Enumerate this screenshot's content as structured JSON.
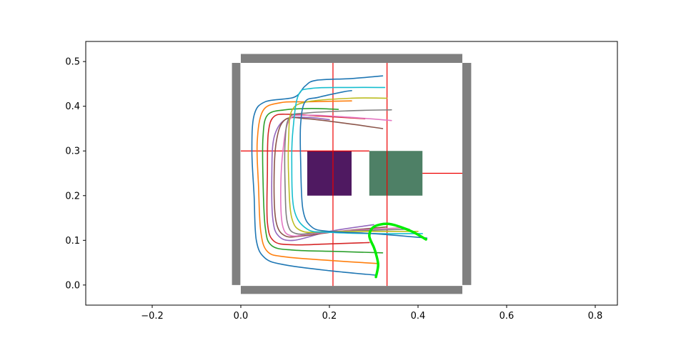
{
  "chart_data": {
    "type": "line",
    "xlim": [
      -0.35,
      0.85
    ],
    "ylim": [
      -0.045,
      0.545
    ],
    "x_ticks": [
      -0.2,
      0.0,
      0.2,
      0.4,
      0.6,
      0.8
    ],
    "x_tick_labels": [
      "−0.2",
      "0.0",
      "0.2",
      "0.4",
      "0.6",
      "0.8"
    ],
    "y_ticks": [
      0.0,
      0.1,
      0.2,
      0.3,
      0.4,
      0.5
    ],
    "y_tick_labels": [
      "0.0",
      "0.1",
      "0.2",
      "0.3",
      "0.4",
      "0.5"
    ],
    "grid": false,
    "walls": {
      "color": "#808080",
      "rects": [
        {
          "x0": 0.0,
          "x1": 0.5,
          "y0": 0.497,
          "y1": 0.517
        },
        {
          "x0": 0.0,
          "x1": 0.5,
          "y0": -0.02,
          "y1": -0.002
        },
        {
          "x0": -0.02,
          "x1": -0.001,
          "y0": 0.0,
          "y1": 0.497
        },
        {
          "x0": 0.5,
          "x1": 0.52,
          "y0": 0.0,
          "y1": 0.497
        }
      ]
    },
    "obstacles": [
      {
        "color": "#4f1961",
        "x0": 0.15,
        "x1": 0.25,
        "y0": 0.2,
        "y1": 0.3
      },
      {
        "color": "#4e8066",
        "x0": 0.29,
        "x1": 0.41,
        "y0": 0.2,
        "y1": 0.3
      }
    ],
    "red_lines": {
      "color": "#ee0000",
      "segments": [
        [
          [
            0.208,
            -0.002
          ],
          [
            0.208,
            0.497
          ]
        ],
        [
          [
            0.33,
            -0.002
          ],
          [
            0.33,
            0.497
          ]
        ],
        [
          [
            0.0,
            0.3
          ],
          [
            0.29,
            0.3
          ]
        ],
        [
          [
            0.41,
            0.25
          ],
          [
            0.5,
            0.25
          ]
        ]
      ]
    },
    "series": [
      {
        "color": "#1f77b4",
        "points": [
          [
            0.305,
            0.022
          ],
          [
            0.2,
            0.032
          ],
          [
            0.1,
            0.045
          ],
          [
            0.055,
            0.06
          ],
          [
            0.035,
            0.1
          ],
          [
            0.03,
            0.2
          ],
          [
            0.025,
            0.3
          ],
          [
            0.03,
            0.38
          ],
          [
            0.055,
            0.41
          ],
          [
            0.12,
            0.42
          ],
          [
            0.145,
            0.445
          ],
          [
            0.17,
            0.458
          ],
          [
            0.25,
            0.462
          ],
          [
            0.32,
            0.468
          ]
        ]
      },
      {
        "color": "#ff7f0e",
        "points": [
          [
            0.31,
            0.048
          ],
          [
            0.2,
            0.055
          ],
          [
            0.1,
            0.063
          ],
          [
            0.06,
            0.075
          ],
          [
            0.045,
            0.12
          ],
          [
            0.04,
            0.22
          ],
          [
            0.037,
            0.32
          ],
          [
            0.05,
            0.39
          ],
          [
            0.09,
            0.408
          ],
          [
            0.15,
            0.41
          ],
          [
            0.25,
            0.412
          ]
        ]
      },
      {
        "color": "#2ca02c",
        "points": [
          [
            0.32,
            0.072
          ],
          [
            0.22,
            0.075
          ],
          [
            0.12,
            0.078
          ],
          [
            0.07,
            0.088
          ],
          [
            0.055,
            0.13
          ],
          [
            0.05,
            0.24
          ],
          [
            0.05,
            0.33
          ],
          [
            0.06,
            0.38
          ],
          [
            0.1,
            0.392
          ],
          [
            0.16,
            0.395
          ],
          [
            0.22,
            0.393
          ]
        ]
      },
      {
        "color": "#d62728",
        "points": [
          [
            0.29,
            0.095
          ],
          [
            0.2,
            0.092
          ],
          [
            0.12,
            0.09
          ],
          [
            0.075,
            0.098
          ],
          [
            0.06,
            0.14
          ],
          [
            0.06,
            0.25
          ],
          [
            0.062,
            0.34
          ],
          [
            0.075,
            0.377
          ],
          [
            0.11,
            0.382
          ],
          [
            0.18,
            0.378
          ],
          [
            0.28,
            0.372
          ]
        ]
      },
      {
        "color": "#9467bd",
        "points": [
          [
            0.3,
            0.135
          ],
          [
            0.2,
            0.12
          ],
          [
            0.12,
            0.1
          ],
          [
            0.085,
            0.11
          ],
          [
            0.072,
            0.15
          ],
          [
            0.07,
            0.25
          ],
          [
            0.075,
            0.33
          ],
          [
            0.1,
            0.37
          ],
          [
            0.15,
            0.375
          ],
          [
            0.2,
            0.37
          ]
        ]
      },
      {
        "color": "#8c564b",
        "points": [
          [
            0.33,
            0.13
          ],
          [
            0.22,
            0.12
          ],
          [
            0.14,
            0.11
          ],
          [
            0.1,
            0.11
          ],
          [
            0.08,
            0.14
          ],
          [
            0.075,
            0.22
          ],
          [
            0.08,
            0.32
          ],
          [
            0.1,
            0.37
          ],
          [
            0.15,
            0.372
          ],
          [
            0.25,
            0.36
          ],
          [
            0.32,
            0.35
          ]
        ]
      },
      {
        "color": "#e377c2",
        "points": [
          [
            0.36,
            0.128
          ],
          [
            0.25,
            0.122
          ],
          [
            0.16,
            0.115
          ],
          [
            0.115,
            0.11
          ],
          [
            0.095,
            0.13
          ],
          [
            0.09,
            0.2
          ],
          [
            0.095,
            0.3
          ],
          [
            0.11,
            0.37
          ],
          [
            0.15,
            0.38
          ],
          [
            0.25,
            0.375
          ],
          [
            0.34,
            0.368
          ]
        ]
      },
      {
        "color": "#7f7f7f",
        "points": [
          [
            0.38,
            0.125
          ],
          [
            0.28,
            0.122
          ],
          [
            0.18,
            0.118
          ],
          [
            0.125,
            0.115
          ],
          [
            0.105,
            0.14
          ],
          [
            0.1,
            0.22
          ],
          [
            0.1,
            0.32
          ],
          [
            0.11,
            0.375
          ],
          [
            0.15,
            0.385
          ],
          [
            0.25,
            0.39
          ],
          [
            0.34,
            0.392
          ]
        ]
      },
      {
        "color": "#bcbd22",
        "points": [
          [
            0.4,
            0.12
          ],
          [
            0.3,
            0.12
          ],
          [
            0.2,
            0.12
          ],
          [
            0.14,
            0.12
          ],
          [
            0.115,
            0.15
          ],
          [
            0.108,
            0.24
          ],
          [
            0.108,
            0.33
          ],
          [
            0.115,
            0.39
          ],
          [
            0.15,
            0.41
          ],
          [
            0.25,
            0.418
          ],
          [
            0.33,
            0.418
          ]
        ]
      },
      {
        "color": "#17becf",
        "points": [
          [
            0.41,
            0.115
          ],
          [
            0.3,
            0.115
          ],
          [
            0.2,
            0.118
          ],
          [
            0.15,
            0.125
          ],
          [
            0.12,
            0.17
          ],
          [
            0.115,
            0.28
          ],
          [
            0.118,
            0.35
          ],
          [
            0.13,
            0.425
          ],
          [
            0.16,
            0.44
          ],
          [
            0.25,
            0.442
          ],
          [
            0.325,
            0.442
          ]
        ]
      },
      {
        "color": "#1f77b4",
        "points": [
          [
            0.42,
            0.105
          ],
          [
            0.3,
            0.115
          ],
          [
            0.2,
            0.12
          ],
          [
            0.16,
            0.13
          ],
          [
            0.14,
            0.17
          ],
          [
            0.135,
            0.28
          ],
          [
            0.135,
            0.36
          ],
          [
            0.145,
            0.41
          ],
          [
            0.175,
            0.42
          ],
          [
            0.23,
            0.432
          ],
          [
            0.25,
            0.435
          ]
        ]
      }
    ],
    "highlight": {
      "color": "#00ee00",
      "points": [
        [
          0.305,
          0.018
        ],
        [
          0.31,
          0.045
        ],
        [
          0.305,
          0.07
        ],
        [
          0.3,
          0.085
        ],
        [
          0.29,
          0.11
        ],
        [
          0.3,
          0.13
        ],
        [
          0.33,
          0.137
        ],
        [
          0.36,
          0.13
        ],
        [
          0.39,
          0.118
        ],
        [
          0.418,
          0.102
        ]
      ]
    }
  }
}
